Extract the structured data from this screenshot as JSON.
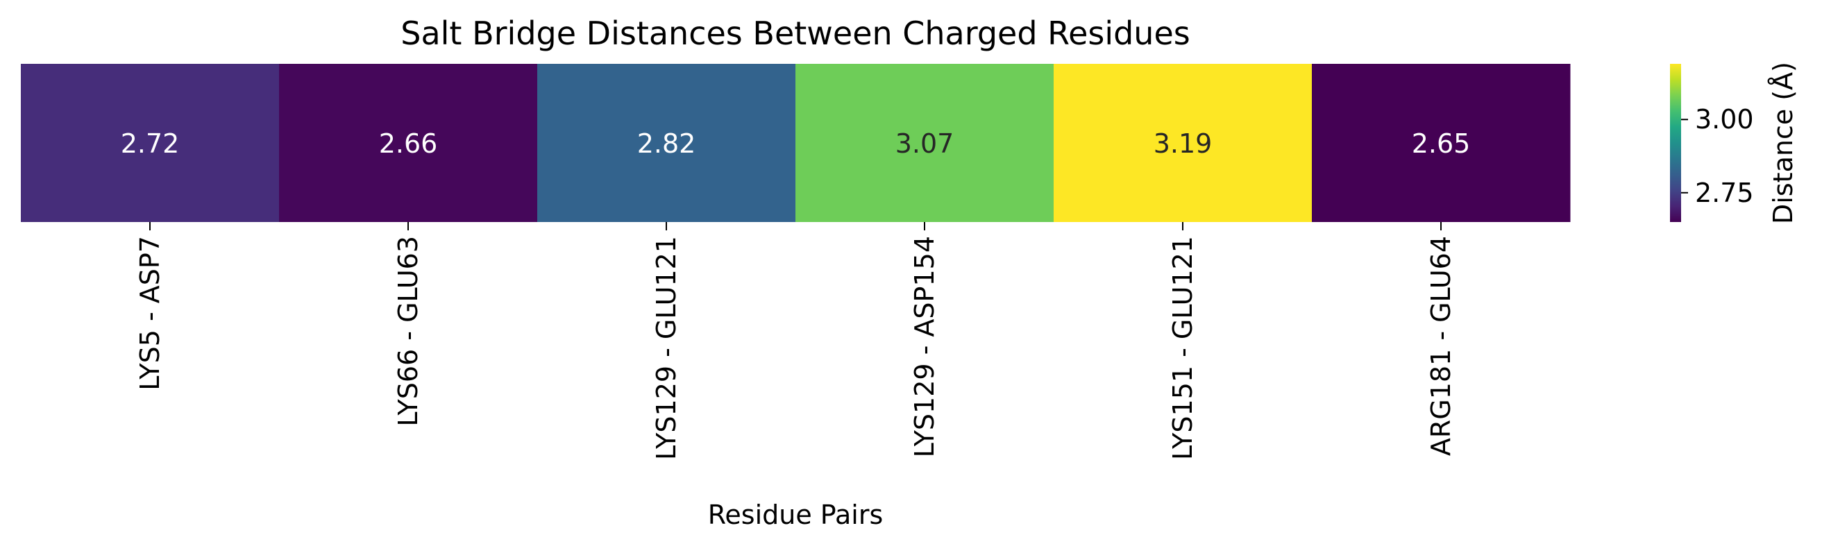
{
  "chart_data": {
    "type": "heatmap",
    "title": "Salt Bridge Distances Between Charged Residues",
    "xlabel": "Residue Pairs",
    "ylabel": "",
    "categories": [
      "LYS5 - ASP7",
      "LYS66 - GLU63",
      "LYS129 - GLU121",
      "LYS129 - ASP154",
      "LYS151 - GLU121",
      "ARG181 - GLU64"
    ],
    "values": [
      2.72,
      2.66,
      2.82,
      3.07,
      3.19,
      2.65
    ],
    "value_labels": [
      "2.72",
      "2.66",
      "2.82",
      "3.07",
      "3.19",
      "2.65"
    ],
    "colormap": "viridis",
    "color_range": [
      2.65,
      3.19
    ],
    "colorbar": {
      "label": "Distance (Å)",
      "ticks": [
        2.75,
        3.0
      ],
      "tick_labels": [
        "2.75",
        "3.00"
      ]
    },
    "grid": false,
    "legend": "colorbar-right"
  },
  "colors": {
    "text_dark": "#262626",
    "text_light": "#ffffff",
    "axis": "#000000"
  }
}
